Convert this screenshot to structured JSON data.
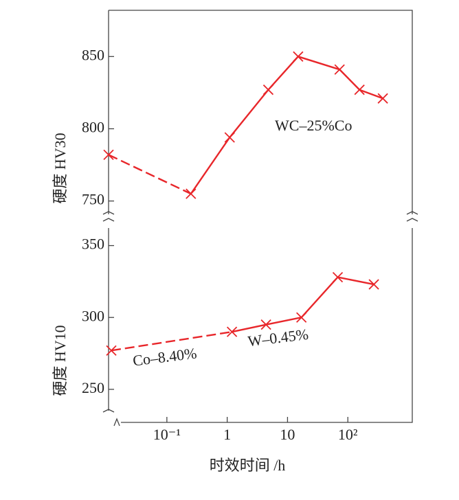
{
  "chart_data": [
    {
      "type": "line",
      "y_label": "硬度 HV30",
      "xscale": "log",
      "xlim": [
        0.0108,
        1170
      ],
      "ylim": [
        737,
        882
      ],
      "yticks": [
        750,
        800,
        850
      ],
      "series": [
        {
          "color": "#e8262a",
          "dashed_to": 1,
          "x": [
            0.0108,
            0.25,
            1.1,
            4.8,
            15,
            73,
            156,
            380
          ],
          "values": [
            782,
            755,
            794,
            827,
            850,
            841,
            827,
            821
          ]
        }
      ],
      "annotations": [
        {
          "text": "WC–25%Co"
        }
      ]
    },
    {
      "type": "line",
      "y_label": "硬度 HV10",
      "x_label": "时效时间 /h",
      "xscale": "log",
      "xlim": [
        0.0108,
        1170
      ],
      "ylim": [
        227,
        356
      ],
      "yticks": [
        250,
        300,
        350
      ],
      "xticks": [
        {
          "value": 0.1,
          "label": "10⁻¹"
        },
        1,
        10,
        {
          "value": 100,
          "label": "10²"
        }
      ],
      "series": [
        {
          "color": "#e8262a",
          "dashed_to": 1,
          "x": [
            0.012,
            1.2,
            4.4,
            17,
            68,
            270
          ],
          "values": [
            277,
            290,
            295,
            300,
            328,
            323
          ]
        }
      ],
      "annotations": [
        {
          "text": "Co–8.40%"
        },
        {
          "text": "W–0.45%"
        }
      ]
    }
  ]
}
